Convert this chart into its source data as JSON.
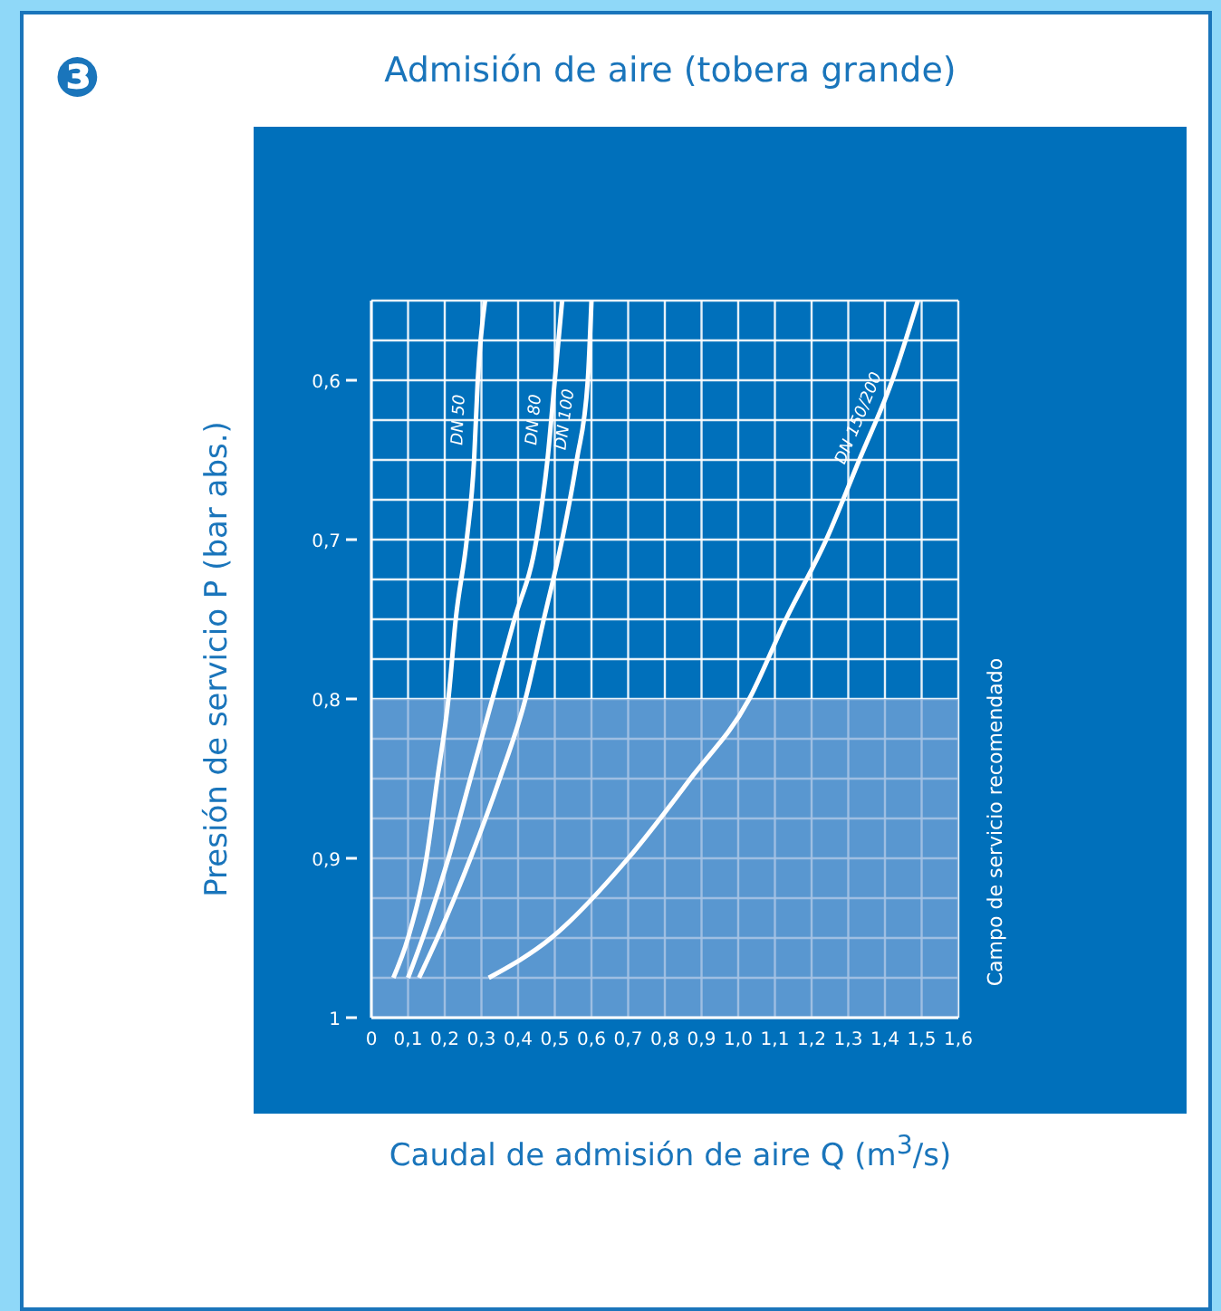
{
  "chart_data": {
    "type": "line",
    "title": "Admisión de aire (tobera grande)",
    "xlabel": "Caudal de admisión de aire Q (m$^{3}$/s)",
    "ylabel": "Presión de servicio P (bar abs.)",
    "annotations": [
      "❸"
    ],
    "xlim": [
      0,
      1.6
    ],
    "ylim": [
      1,
      0.55
    ],
    "xticks": [
      0,
      {
        "value": 0.1,
        "label": "0,1"
      },
      {
        "value": 0.2,
        "label": "0,2"
      },
      {
        "value": 0.3,
        "label": "0,3"
      },
      {
        "value": 0.4,
        "label": "0,4"
      },
      {
        "value": 0.5,
        "label": "0,5"
      },
      {
        "value": 0.6,
        "label": "0,6"
      },
      {
        "value": 0.7,
        "label": "0,7"
      },
      {
        "value": 0.8,
        "label": "0,8"
      },
      {
        "value": 0.9,
        "label": "0,9"
      },
      {
        "value": 1,
        "label": "1,0"
      },
      {
        "value": 1.1,
        "label": "1,1"
      },
      {
        "value": 1.2,
        "label": "1,2"
      },
      {
        "value": 1.3,
        "label": "1,3"
      },
      {
        "value": 1.4,
        "label": "1,4"
      },
      {
        "value": 1.5,
        "label": "1,5"
      },
      {
        "value": 1.6,
        "label": "1,6"
      }
    ],
    "yticks": [
      {
        "value": 0.55,
        "label": null
      },
      {
        "value": 0.575,
        "label": null
      },
      {
        "value": 0.6,
        "label": "0,6"
      },
      {
        "value": 0.625,
        "label": null
      },
      {
        "value": 0.65,
        "label": null
      },
      {
        "value": 0.675,
        "label": null
      },
      {
        "value": 0.7,
        "label": "0,7"
      },
      {
        "value": 0.725,
        "label": null
      },
      {
        "value": 0.75,
        "label": null
      },
      {
        "value": 0.775,
        "label": null
      },
      {
        "value": 0.8,
        "label": "0,8"
      },
      {
        "value": 0.825,
        "label": null
      },
      {
        "value": 0.85,
        "label": null
      },
      {
        "value": 0.875,
        "label": null
      },
      {
        "value": 0.9,
        "label": "0,9"
      },
      {
        "value": 0.925,
        "label": null
      },
      {
        "value": 0.95,
        "label": null
      },
      {
        "value": 0.975,
        "label": null
      },
      1
    ],
    "grid": true,
    "marker": "none",
    "line_style": "solid",
    "bands": [
      {
        "axis": "y",
        "from": 0.8,
        "to": 1,
        "label": "Campo de servicio recomendado",
        "color": "#7fa8d8"
      }
    ],
    "series": [
      {
        "name": "DN 50",
        "color": "#ffffff",
        "x": [
          0.06,
          0.1,
          0.15,
          0.18,
          0.21,
          0.23,
          0.26,
          0.28,
          0.29,
          0.31
        ],
        "values": [
          0.975,
          0.95,
          0.9,
          0.85,
          0.8,
          0.75,
          0.7,
          0.65,
          0.6,
          0.55
        ]
      },
      {
        "name": "DN 80",
        "color": "#ffffff",
        "x": [
          0.1,
          0.14,
          0.21,
          0.27,
          0.33,
          0.39,
          0.45,
          0.48,
          0.5,
          0.52
        ],
        "values": [
          0.975,
          0.95,
          0.9,
          0.85,
          0.8,
          0.75,
          0.7,
          0.65,
          0.6,
          0.55
        ]
      },
      {
        "name": "DN 100",
        "color": "#ffffff",
        "x": [
          0.13,
          0.18,
          0.27,
          0.35,
          0.42,
          0.47,
          0.52,
          0.56,
          0.59,
          0.6
        ],
        "values": [
          0.975,
          0.95,
          0.9,
          0.85,
          0.8,
          0.75,
          0.7,
          0.65,
          0.6,
          0.55
        ]
      },
      {
        "name": "DN 150/200",
        "color": "#ffffff",
        "x": [
          0.32,
          0.49,
          0.7,
          0.87,
          1.03,
          1.13,
          1.24,
          1.33,
          1.42,
          1.49
        ],
        "values": [
          0.975,
          0.95,
          0.9,
          0.85,
          0.8,
          0.75,
          0.7,
          0.65,
          0.6,
          0.55
        ]
      }
    ]
  }
}
